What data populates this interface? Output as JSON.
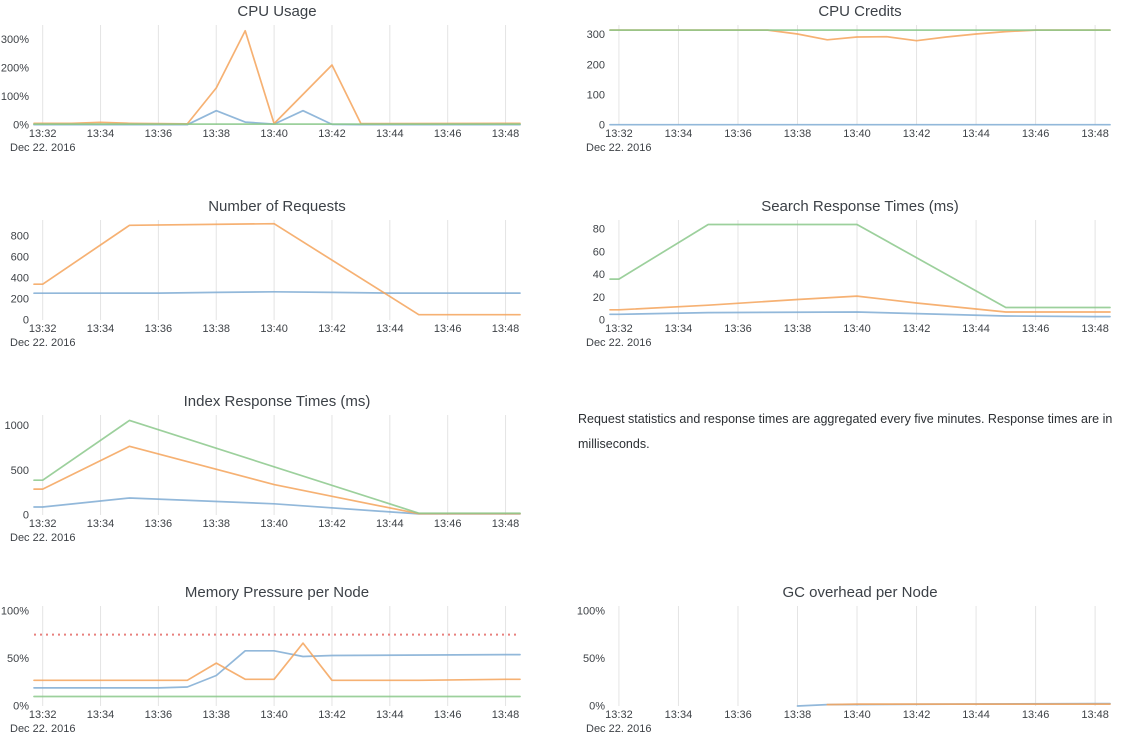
{
  "note": {
    "text": "Request statistics and response times are aggregated every five minutes. Response times are in milliseconds."
  },
  "colors": {
    "blue": "#7fabd3",
    "orange": "#f5a35a",
    "green": "#8bc88b",
    "red": "#e8807d",
    "grid": "#e4e4e4",
    "tick_text": "#3e4247",
    "title_text": "#3c4147"
  },
  "x_axis": {
    "tick_labels": [
      "13:32",
      "13:34",
      "13:36",
      "13:38",
      "13:40",
      "13:42",
      "13:44",
      "13:46",
      "13:48"
    ],
    "date_label": "Dec 22. 2016",
    "minutes_per_tick": 2
  },
  "chart_data": [
    {
      "id": "cpu-usage",
      "type": "line",
      "title": "CPU Usage",
      "y_max": 350,
      "y_ticks": [
        {
          "v": 0,
          "label": "0%"
        },
        {
          "v": 100,
          "label": "100%"
        },
        {
          "v": 200,
          "label": "200%"
        },
        {
          "v": 300,
          "label": "300%"
        }
      ],
      "series": [
        {
          "name": "blue",
          "color": "blue",
          "x": [
            0,
            5,
            6,
            7,
            8,
            9,
            10,
            11,
            16
          ],
          "y": [
            1,
            1,
            50,
            10,
            3,
            50,
            2,
            1,
            1
          ]
        },
        {
          "name": "orange",
          "color": "orange",
          "x": [
            0,
            1,
            2,
            3,
            4,
            5,
            6,
            7,
            8,
            10,
            11,
            16
          ],
          "y": [
            6,
            6,
            9,
            6,
            5,
            4,
            130,
            330,
            5,
            210,
            5,
            6
          ]
        },
        {
          "name": "green",
          "color": "green",
          "x": [
            0,
            16
          ],
          "y": [
            3,
            3
          ]
        }
      ]
    },
    {
      "id": "cpu-credits",
      "type": "line",
      "title": "CPU Credits",
      "y_max": 332,
      "y_ticks": [
        {
          "v": 0,
          "label": "0"
        },
        {
          "v": 100,
          "label": "100"
        },
        {
          "v": 200,
          "label": "200"
        },
        {
          "v": 300,
          "label": "300"
        }
      ],
      "series": [
        {
          "name": "blue",
          "color": "blue",
          "x": [
            0,
            16
          ],
          "y": [
            1,
            1
          ]
        },
        {
          "name": "orange",
          "color": "orange",
          "x": [
            0,
            5,
            6,
            7,
            8,
            9,
            10,
            11,
            12,
            13,
            14,
            16
          ],
          "y": [
            315,
            315,
            302,
            283,
            292,
            293,
            280,
            292,
            302,
            310,
            315,
            315
          ]
        },
        {
          "name": "green",
          "color": "green",
          "x": [
            0,
            16
          ],
          "y": [
            315,
            315
          ]
        }
      ]
    },
    {
      "id": "number-of-requests",
      "type": "line",
      "title": "Number of Requests",
      "y_max": 950,
      "y_ticks": [
        {
          "v": 0,
          "label": "0"
        },
        {
          "v": 200,
          "label": "200"
        },
        {
          "v": 400,
          "label": "400"
        },
        {
          "v": 600,
          "label": "600"
        },
        {
          "v": 800,
          "label": "800"
        }
      ],
      "series": [
        {
          "name": "blue",
          "color": "blue",
          "x": [
            0,
            4,
            6,
            8,
            10,
            12,
            16
          ],
          "y": [
            255,
            256,
            262,
            268,
            262,
            256,
            256
          ]
        },
        {
          "name": "orange",
          "color": "orange",
          "x": [
            0,
            3,
            8,
            13,
            16
          ],
          "y": [
            340,
            900,
            915,
            50,
            50
          ]
        }
      ]
    },
    {
      "id": "search-response-times",
      "type": "line",
      "title": "Search Response Times (ms)",
      "y_max": 88,
      "y_ticks": [
        {
          "v": 0,
          "label": "0"
        },
        {
          "v": 20,
          "label": "20"
        },
        {
          "v": 40,
          "label": "40"
        },
        {
          "v": 60,
          "label": "60"
        },
        {
          "v": 80,
          "label": "80"
        }
      ],
      "series": [
        {
          "name": "blue",
          "color": "blue",
          "x": [
            0,
            3,
            8,
            13,
            16
          ],
          "y": [
            5,
            6.5,
            7,
            3.5,
            3
          ]
        },
        {
          "name": "orange",
          "color": "orange",
          "x": [
            0,
            3,
            6,
            8,
            10,
            13,
            16
          ],
          "y": [
            9,
            13,
            18,
            21,
            15,
            7,
            7
          ]
        },
        {
          "name": "green",
          "color": "green",
          "x": [
            0,
            3,
            8,
            13,
            16
          ],
          "y": [
            36,
            84,
            84,
            11,
            11
          ]
        }
      ]
    },
    {
      "id": "index-response-times",
      "type": "line",
      "title": "Index Response Times (ms)",
      "y_max": 1120,
      "y_ticks": [
        {
          "v": 0,
          "label": "0"
        },
        {
          "v": 500,
          "label": "500"
        },
        {
          "v": 1000,
          "label": "1000"
        }
      ],
      "series": [
        {
          "name": "blue",
          "color": "blue",
          "x": [
            0,
            3,
            8,
            12,
            13,
            16
          ],
          "y": [
            90,
            190,
            125,
            35,
            12,
            12
          ]
        },
        {
          "name": "orange",
          "color": "orange",
          "x": [
            0,
            3,
            8,
            10,
            13,
            16
          ],
          "y": [
            290,
            770,
            340,
            210,
            15,
            15
          ]
        },
        {
          "name": "green",
          "color": "green",
          "x": [
            0,
            3,
            13,
            16
          ],
          "y": [
            390,
            1060,
            20,
            20
          ]
        }
      ]
    },
    {
      "id": "memory-pressure-per-node",
      "type": "line",
      "title": "Memory Pressure per Node",
      "y_max": 105,
      "y_ticks": [
        {
          "v": 0,
          "label": "0%"
        },
        {
          "v": 50,
          "label": "50%"
        },
        {
          "v": 100,
          "label": "100%"
        }
      ],
      "ref_line": {
        "value": 75,
        "color": "red",
        "style": "dotted"
      },
      "series": [
        {
          "name": "blue",
          "color": "blue",
          "x": [
            0,
            4,
            5,
            6,
            7,
            8,
            9,
            10,
            16
          ],
          "y": [
            19,
            19,
            20,
            32,
            58,
            58,
            52,
            53,
            54
          ]
        },
        {
          "name": "orange",
          "color": "orange",
          "x": [
            0,
            5,
            6,
            7,
            8,
            9,
            10,
            13,
            16
          ],
          "y": [
            27,
            27,
            45,
            28,
            28,
            66,
            27,
            27,
            28
          ]
        },
        {
          "name": "green",
          "color": "green",
          "x": [
            0,
            16
          ],
          "y": [
            10,
            10
          ]
        }
      ]
    },
    {
      "id": "gc-overhead-per-node",
      "type": "line",
      "title": "GC overhead per Node",
      "y_max": 105,
      "y_ticks": [
        {
          "v": 0,
          "label": "0%"
        },
        {
          "v": 50,
          "label": "50%"
        },
        {
          "v": 100,
          "label": "100%"
        }
      ],
      "series": [
        {
          "name": "blue",
          "color": "blue",
          "x": [
            6,
            7,
            16
          ],
          "y": [
            0,
            1.5,
            2.5
          ]
        },
        {
          "name": "orange",
          "color": "orange",
          "x": [
            7,
            8,
            16
          ],
          "y": [
            1.5,
            2,
            2
          ]
        }
      ]
    }
  ]
}
